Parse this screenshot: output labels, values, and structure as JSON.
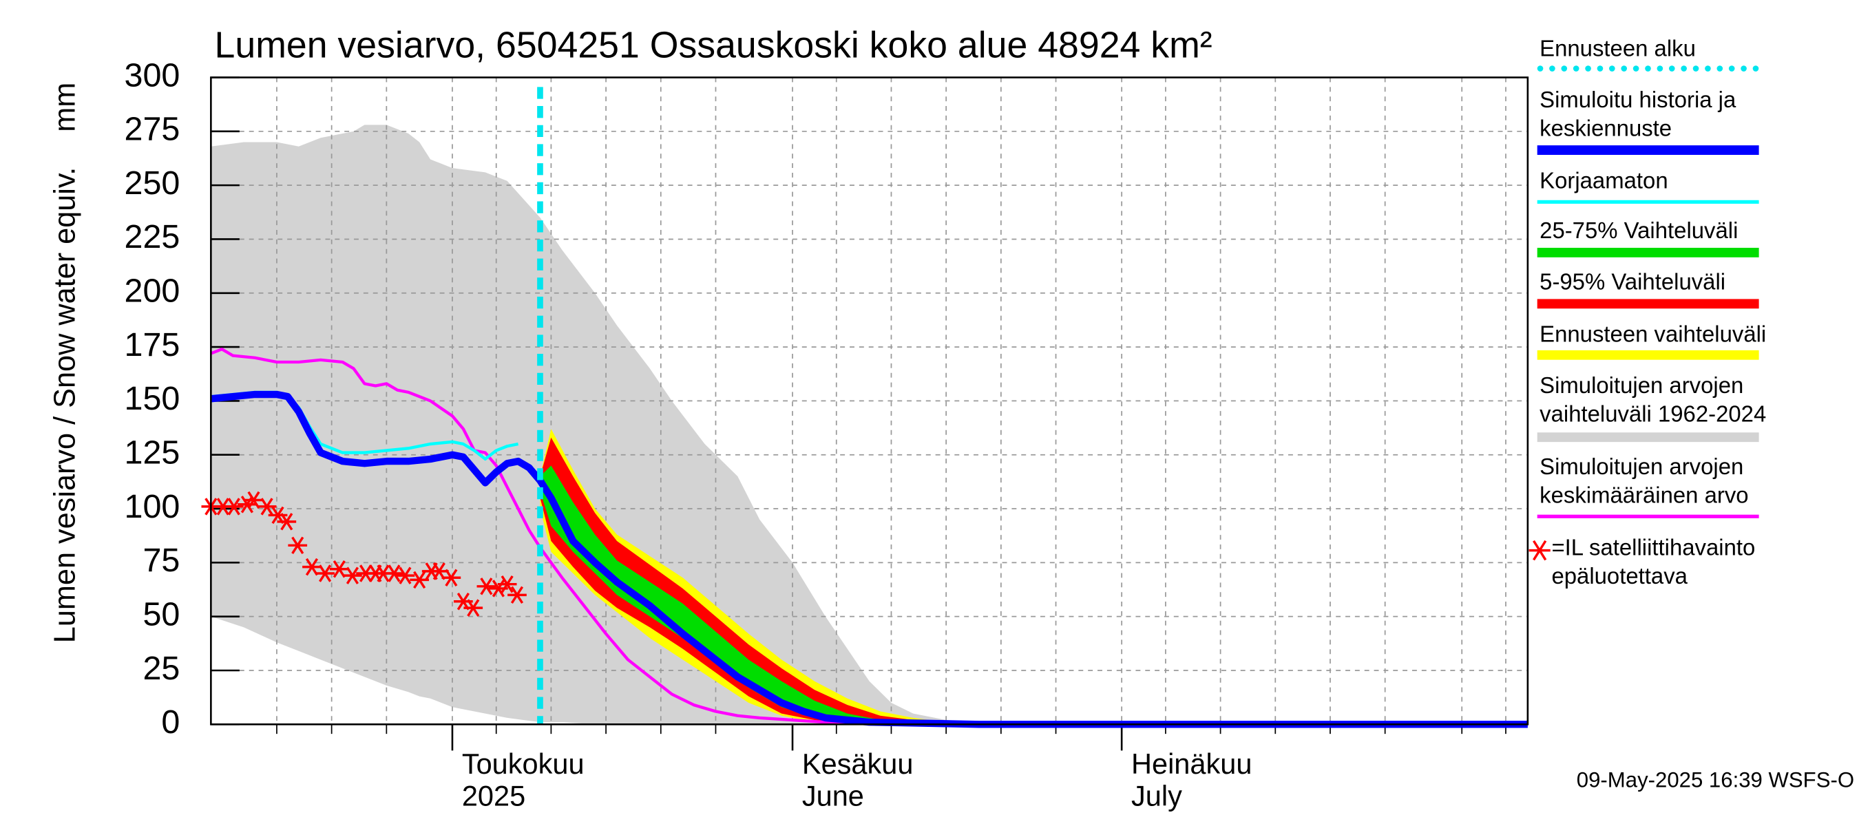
{
  "chart_data": {
    "type": "line",
    "title": "Lumen vesiarvo, 6504251 Ossauskoski koko alue 48924 km²",
    "ylabel": "Lumen vesiarvo / Snow water equiv.",
    "yunit": "mm",
    "timestamp": "09-May-2025 16:39 WSFS-O",
    "xlim": [
      0,
      120
    ],
    "ylim": [
      0,
      300
    ],
    "yticks": [
      0,
      25,
      50,
      75,
      100,
      125,
      150,
      175,
      200,
      225,
      250,
      275,
      300
    ],
    "xticks": [
      {
        "value": 22,
        "label": "Toukokuu"
      },
      {
        "value": 53,
        "label": "Kesäkuu"
      },
      {
        "value": 83,
        "label": "Heinäkuu"
      }
    ],
    "xtick_sublabels": [
      "2025",
      "June",
      "July"
    ],
    "xgrid": [
      6,
      11,
      16,
      26,
      31,
      36,
      41,
      46,
      57,
      62,
      67,
      72,
      77,
      87,
      92,
      97,
      102,
      107,
      114,
      118
    ],
    "grid": true,
    "forecast_start": {
      "name": "Ennusteen alku",
      "x": 30,
      "color": "#00e5ee"
    },
    "bands": [
      {
        "name": "Simuloitujen arvojen\nvaihteluväli 1962-2024",
        "color": "#d3d3d3",
        "x": [
          0,
          3,
          6,
          8,
          10,
          13,
          14,
          16,
          18,
          19,
          20,
          22,
          25,
          27,
          30,
          32,
          35,
          37,
          40,
          42,
          45,
          48,
          50,
          53,
          56,
          58,
          60,
          62,
          64,
          67,
          70,
          75
        ],
        "upper": [
          268,
          270,
          270,
          268,
          272,
          275,
          278,
          278,
          274,
          270,
          262,
          258,
          256,
          252,
          235,
          220,
          200,
          185,
          165,
          150,
          130,
          115,
          95,
          75,
          50,
          35,
          20,
          10,
          5,
          2,
          1,
          0
        ],
        "lower": [
          50,
          45,
          38,
          34,
          30,
          24,
          22,
          18,
          15,
          13,
          12,
          8,
          5,
          3,
          1,
          1,
          0,
          0,
          0,
          0,
          0,
          0,
          0,
          0,
          0,
          0,
          0,
          0,
          0,
          0,
          0,
          0
        ]
      },
      {
        "name": "Ennusteen vaihteluväli",
        "color": "#ffff00",
        "x": [
          30,
          31,
          33,
          35,
          37,
          40,
          43,
          46,
          49,
          52,
          55,
          58,
          61,
          64,
          67,
          70
        ],
        "upper": [
          115,
          137,
          118,
          100,
          88,
          78,
          68,
          55,
          42,
          30,
          20,
          12,
          6,
          3,
          1,
          0
        ],
        "lower": [
          100,
          80,
          70,
          60,
          52,
          40,
          30,
          20,
          10,
          4,
          1,
          0,
          0,
          0,
          0,
          0
        ]
      },
      {
        "name": "5-95% Vaihteluväli",
        "color": "#ff0000",
        "x": [
          30,
          31,
          33,
          35,
          37,
          40,
          43,
          46,
          49,
          52,
          55,
          58,
          61,
          64,
          67,
          70
        ],
        "upper": [
          115,
          133,
          115,
          98,
          85,
          74,
          63,
          50,
          37,
          26,
          16,
          9,
          4,
          2,
          0.5,
          0
        ],
        "lower": [
          105,
          85,
          73,
          62,
          54,
          45,
          35,
          24,
          13,
          5,
          2,
          0,
          0,
          0,
          0,
          0
        ]
      },
      {
        "name": "25-75% Vaihteluväli",
        "color": "#00dd00",
        "x": [
          30,
          31,
          33,
          35,
          37,
          40,
          43,
          46,
          49,
          52,
          55,
          58,
          61,
          64,
          67,
          70
        ],
        "upper": [
          115,
          120,
          103,
          88,
          76,
          66,
          56,
          43,
          30,
          20,
          11,
          5,
          2,
          1,
          0,
          0
        ],
        "lower": [
          108,
          92,
          80,
          70,
          60,
          50,
          40,
          28,
          17,
          8,
          3,
          1,
          0,
          0,
          0,
          0
        ]
      }
    ],
    "series": [
      {
        "name": "Simuloitujen arvojen\nkeskimääräinen arvo",
        "color": "#ff00ff",
        "width": 2.5,
        "x": [
          0,
          1,
          2,
          4,
          6,
          8,
          10,
          12,
          13,
          14,
          15,
          16,
          17,
          18,
          20,
          22,
          23,
          24,
          25,
          26,
          27,
          28,
          29,
          30,
          31,
          32,
          34,
          36,
          38,
          40,
          42,
          44,
          46,
          48,
          50,
          53,
          56,
          60,
          65,
          120
        ],
        "values": [
          172,
          174,
          171,
          170,
          168,
          168,
          169,
          168,
          165,
          158,
          157,
          158,
          155,
          154,
          150,
          143,
          137,
          127,
          126,
          120,
          110,
          100,
          90,
          82,
          75,
          68,
          55,
          42,
          30,
          22,
          14,
          9,
          6,
          4,
          3,
          2,
          1,
          0.5,
          0,
          0
        ]
      },
      {
        "name": "Korjaamaton",
        "color": "#00ffff",
        "width": 2.5,
        "x": [
          0,
          2,
          4,
          6,
          7,
          8,
          9,
          10,
          12,
          14,
          16,
          18,
          20,
          22,
          23,
          24,
          25,
          26,
          27,
          28
        ],
        "values": [
          152,
          153,
          154,
          154,
          152,
          147,
          138,
          130,
          126,
          126,
          127,
          128,
          130,
          131,
          130,
          127,
          123,
          127,
          129,
          130
        ]
      },
      {
        "name": "Simuloitu historia ja\nkeskiennuste",
        "color": "#0000ff",
        "width": 6,
        "x": [
          0,
          2,
          4,
          6,
          7,
          8,
          9,
          10,
          12,
          14,
          16,
          18,
          20,
          22,
          23,
          24,
          25,
          26,
          27,
          28,
          29,
          30,
          31,
          32,
          33,
          35,
          37,
          40,
          43,
          46,
          48,
          50,
          52,
          54,
          56,
          58,
          60,
          65,
          70,
          120
        ],
        "values": [
          151,
          152,
          153,
          153,
          152,
          145,
          135,
          126,
          122,
          121,
          122,
          122,
          123,
          125,
          124,
          118,
          112,
          117,
          121,
          122,
          119,
          113,
          105,
          95,
          85,
          75,
          66,
          55,
          42,
          30,
          22,
          16,
          10,
          6,
          3,
          2,
          1,
          0.5,
          0,
          0
        ]
      }
    ],
    "scatter": {
      "name": "=IL satelliittihavainto\nepäluotettava",
      "color": "#ff0000",
      "x": [
        0,
        1.1,
        2.1,
        3.3,
        3.9,
        5.1,
        6.1,
        6.9,
        7.9,
        9.2,
        10.4,
        11.7,
        12.9,
        14.1,
        15.0,
        15.7,
        16.7,
        17.7,
        19.0,
        20.1,
        20.8,
        21.9,
        23.0,
        23.9,
        25.1,
        26.2,
        27.0,
        27.9
      ],
      "values": [
        101,
        101,
        101,
        102,
        104,
        101,
        97,
        94,
        83,
        73,
        70,
        72,
        69,
        70,
        70,
        70,
        70,
        69,
        67,
        71,
        71,
        68,
        57,
        54,
        64,
        63,
        65,
        60
      ]
    }
  }
}
